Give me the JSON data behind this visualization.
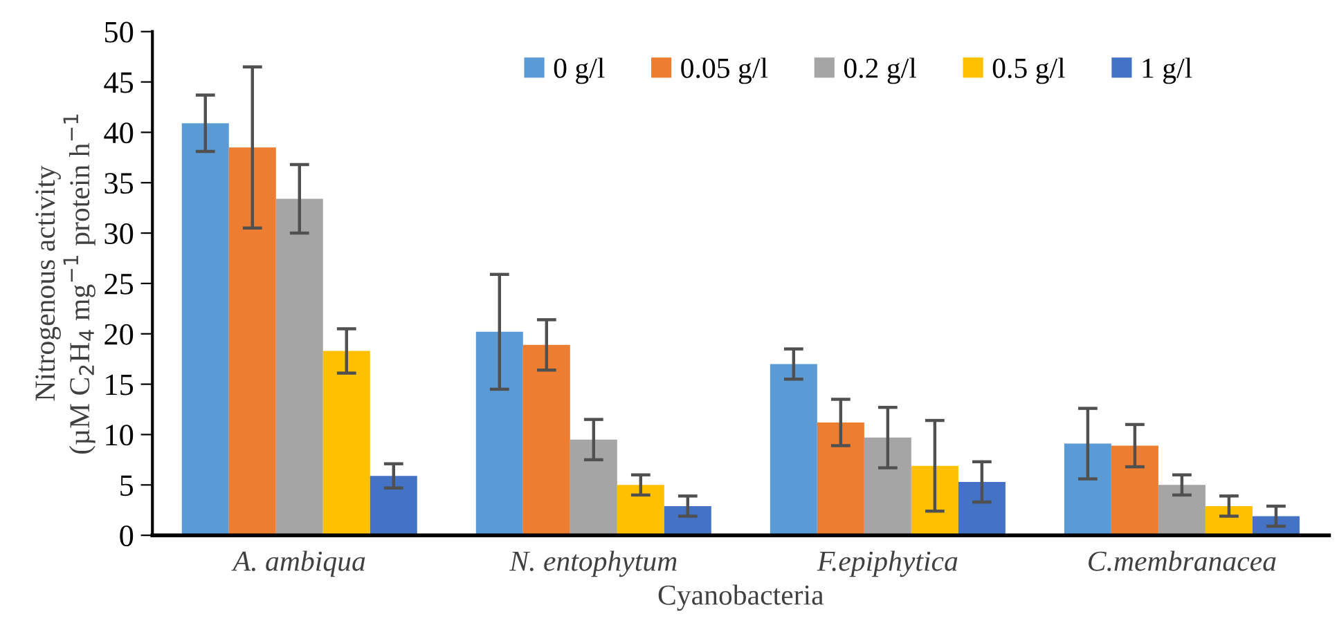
{
  "chart_data": {
    "type": "bar",
    "xlabel": "Cyanobacteria",
    "ylabel": "Nitrogenous activity\n(µM C$_{2}$H$_{4}$ mg$^{−1}$ protein h$^{−1}$",
    "categories": [
      "A. ambiqua",
      "N. entophytum",
      "F.epiphytica",
      "C.membranacea"
    ],
    "series": [
      {
        "name": "0 g/l",
        "color": "#5b9bd5",
        "values": [
          40.9,
          20.2,
          17.0,
          9.1
        ],
        "errors": [
          2.8,
          5.7,
          1.5,
          3.5
        ]
      },
      {
        "name": "0.05 g/l",
        "color": "#ed7d31",
        "values": [
          38.5,
          18.9,
          11.2,
          8.9
        ],
        "errors": [
          8.0,
          2.5,
          2.3,
          2.1
        ]
      },
      {
        "name": "0.2 g/l",
        "color": "#a5a5a5",
        "values": [
          33.4,
          9.5,
          9.7,
          5.0
        ],
        "errors": [
          3.4,
          2.0,
          3.0,
          1.0
        ]
      },
      {
        "name": "0.5 g/l",
        "color": "#ffc000",
        "values": [
          18.3,
          5.0,
          6.9,
          2.9
        ],
        "errors": [
          2.2,
          1.0,
          4.5,
          1.0
        ]
      },
      {
        "name": "1 g/l",
        "color": "#4472c4",
        "values": [
          5.9,
          2.9,
          5.3,
          1.9
        ],
        "errors": [
          1.2,
          1.0,
          2.0,
          1.0
        ]
      }
    ],
    "ylim": [
      0,
      50
    ],
    "yticks": [
      0,
      5,
      10,
      15,
      20,
      25,
      30,
      35,
      40,
      45,
      50
    ],
    "grid": false,
    "legend": "top right"
  }
}
